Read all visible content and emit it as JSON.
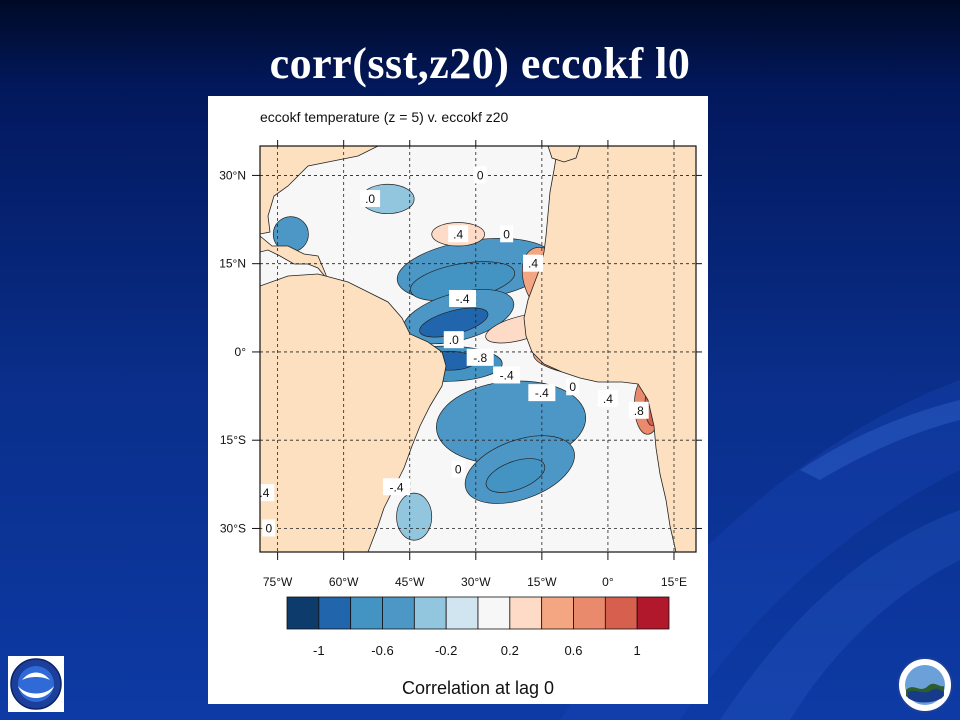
{
  "slide": {
    "title": "corr(sst,z20) eccokf l0"
  },
  "colors": {
    "land": "#fde0bf",
    "slide_background": "#0b2f8c"
  },
  "logos": {
    "left": "noaa-logo",
    "right": "noaa-seal-logo"
  },
  "chart_data": {
    "type": "heatmap",
    "title": "eccokf temperature (z = 5) v. eccokf z20",
    "x_ticks": [
      "75°W",
      "60°W",
      "45°W",
      "30°W",
      "15°W",
      "0°",
      "15°E"
    ],
    "x_tick_values": [
      -75,
      -60,
      -45,
      -30,
      -15,
      0,
      15
    ],
    "y_ticks": [
      "30°N",
      "15°N",
      "0°",
      "15°S",
      "30°S"
    ],
    "y_tick_values": [
      30,
      15,
      0,
      -15,
      -30
    ],
    "xlim": [
      -79,
      20
    ],
    "ylim": [
      -34,
      35
    ],
    "grid": true,
    "colorbar": {
      "label": "Correlation at lag 0",
      "tick_labels": [
        "-1",
        "-0.6",
        "-0.2",
        "0.2",
        "0.6",
        "1"
      ],
      "tick_values": [
        -1,
        -0.6,
        -0.2,
        0.2,
        0.6,
        1
      ],
      "levels": [
        -1,
        -0.8,
        -0.6,
        -0.4,
        -0.2,
        0,
        0.2,
        0.4,
        0.6,
        0.8,
        1
      ],
      "colors": [
        "#0c3b6c",
        "#2166ac",
        "#4393c3",
        "#4d97c6",
        "#92c5de",
        "#d1e5f0",
        "#f7f7f7",
        "#fddbc7",
        "#f4a582",
        "#e98a6c",
        "#d6604d",
        "#b2182b"
      ]
    },
    "contour_labels": [
      {
        "text": "0",
        "lon": -29,
        "lat": 30
      },
      {
        "text": ".0",
        "lon": -54,
        "lat": 26
      },
      {
        "text": ".4",
        "lon": -34,
        "lat": 20
      },
      {
        "text": "0",
        "lon": -23,
        "lat": 20
      },
      {
        "text": ".4",
        "lon": -17,
        "lat": 15
      },
      {
        "text": "-.4",
        "lon": -33,
        "lat": 9
      },
      {
        "text": ".0",
        "lon": -35,
        "lat": 2
      },
      {
        "text": "-.8",
        "lon": -29,
        "lat": -1
      },
      {
        "text": "-.4",
        "lon": -23,
        "lat": -4
      },
      {
        "text": "-.4",
        "lon": -15,
        "lat": -7
      },
      {
        "text": "0",
        "lon": -8,
        "lat": -6
      },
      {
        "text": ".4",
        "lon": 0,
        "lat": -8
      },
      {
        "text": ".8",
        "lon": 7,
        "lat": -10
      },
      {
        "text": ".4",
        "lon": -78,
        "lat": -24
      },
      {
        "text": "-.4",
        "lon": -48,
        "lat": -23
      },
      {
        "text": "0",
        "lon": -34,
        "lat": -20
      },
      {
        "text": "0",
        "lon": -77,
        "lat": -30
      }
    ],
    "fields": [
      {
        "value": -0.45,
        "shape": "ellipse",
        "lon": -30,
        "lat": 14,
        "rlon": 18,
        "rlat": 5,
        "rot": -8
      },
      {
        "value": -0.7,
        "shape": "ellipse",
        "lon": -33,
        "lat": 12,
        "rlon": 12,
        "rlat": 3,
        "rot": -10
      },
      {
        "value": -0.55,
        "shape": "ellipse",
        "lon": -34,
        "lat": 6,
        "rlon": 13,
        "rlat": 4,
        "rot": -15
      },
      {
        "value": -0.85,
        "shape": "ellipse",
        "lon": -35,
        "lat": 5,
        "rlon": 8,
        "rlat": 2,
        "rot": -15
      },
      {
        "value": -0.7,
        "shape": "ellipse",
        "lon": -37,
        "lat": -2,
        "rlon": 13,
        "rlat": 3,
        "rot": 0
      },
      {
        "value": -0.9,
        "shape": "ellipse",
        "lon": -36,
        "lat": -1.5,
        "rlon": 6,
        "rlat": 1.6,
        "rot": 0
      },
      {
        "value": -0.45,
        "shape": "ellipse",
        "lon": -22,
        "lat": -12,
        "rlon": 17,
        "rlat": 7,
        "rot": -5
      },
      {
        "value": -0.6,
        "shape": "ellipse",
        "lon": -20,
        "lat": -20,
        "rlon": 13,
        "rlat": 5,
        "rot": -20
      },
      {
        "value": -0.75,
        "shape": "ellipse",
        "lon": -21,
        "lat": -21,
        "rlon": 7,
        "rlat": 2.4,
        "rot": -20
      },
      {
        "value": -0.4,
        "shape": "ellipse",
        "lon": -44,
        "lat": -28,
        "rlon": 4,
        "rlat": 4,
        "rot": 0
      },
      {
        "value": -0.5,
        "shape": "ellipse",
        "lon": -72,
        "lat": 20,
        "rlon": 4,
        "rlat": 3,
        "rot": 0
      },
      {
        "value": -0.35,
        "shape": "ellipse",
        "lon": -50,
        "lat": 26,
        "rlon": 6,
        "rlat": 2.5,
        "rot": 0
      },
      {
        "value": 0.35,
        "shape": "ellipse",
        "lon": -34,
        "lat": 20,
        "rlon": 6,
        "rlat": 2,
        "rot": 0
      },
      {
        "value": 0.45,
        "shape": "ellipse",
        "lon": -14,
        "lat": 12,
        "rlon": 5,
        "rlat": 6,
        "rot": -20
      },
      {
        "value": 0.35,
        "shape": "ellipse",
        "lon": -20,
        "lat": 4,
        "rlon": 8,
        "rlat": 2,
        "rot": -15
      },
      {
        "value": 0.55,
        "shape": "ellipse",
        "lon": -5,
        "lat": -1,
        "rlon": 12,
        "rlat": 3,
        "rot": 5
      },
      {
        "value": 0.7,
        "shape": "ellipse",
        "lon": 3,
        "lat": -2,
        "rlon": 6,
        "rlat": 2,
        "rot": 5
      },
      {
        "value": 0.65,
        "shape": "ellipse",
        "lon": 9,
        "lat": -9,
        "rlon": 3,
        "rlat": 5,
        "rot": 0
      },
      {
        "value": 0.9,
        "shape": "ellipse",
        "lon": 10,
        "lat": -9,
        "rlon": 1.6,
        "rlat": 3.5,
        "rot": 0
      },
      {
        "value": 0.35,
        "shape": "ellipse",
        "lon": -78,
        "lat": -20,
        "rlon": 2,
        "rlat": 5,
        "rot": 0
      }
    ]
  }
}
